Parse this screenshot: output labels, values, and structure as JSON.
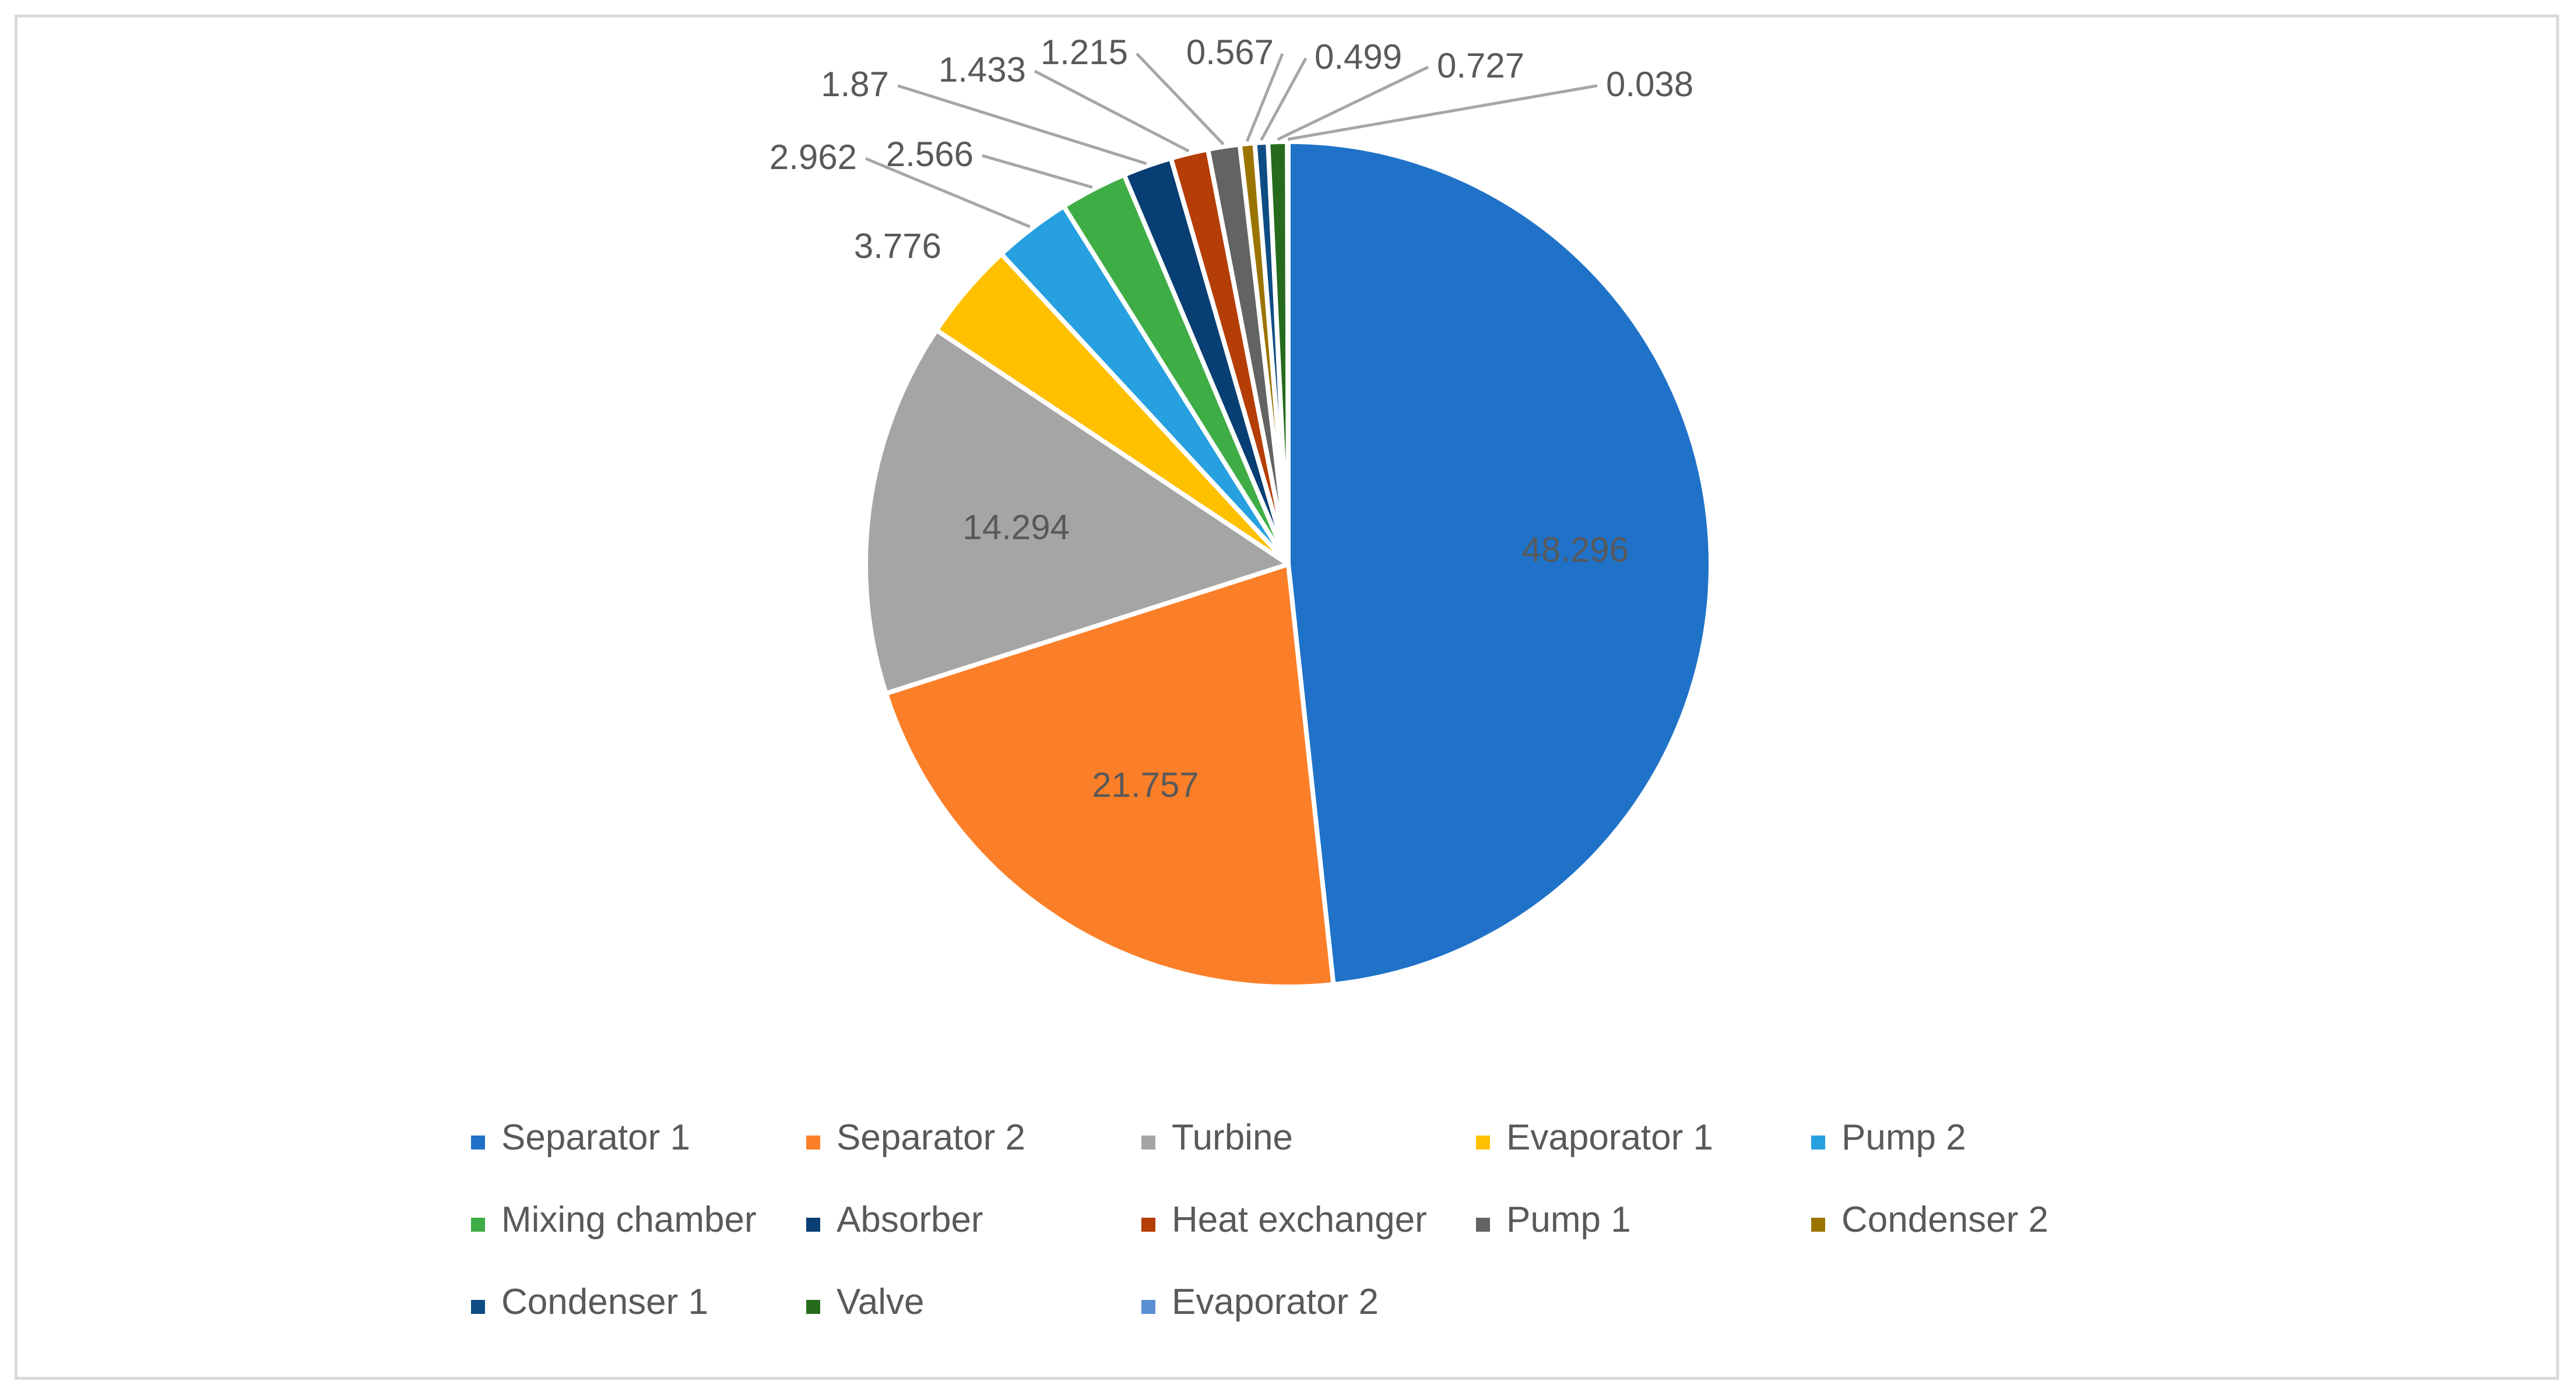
{
  "chart_data": {
    "type": "pie",
    "title": "",
    "categories": [
      "Separator 1",
      "Separator 2",
      "Turbine",
      "Evaporator 1",
      "Pump 2",
      "Mixing chamber",
      "Absorber",
      "Heat exchanger",
      "Pump 1",
      "Condenser 2",
      "Condenser 1",
      "Valve",
      "Evaporator 2"
    ],
    "values": [
      48.296,
      21.757,
      14.294,
      3.776,
      2.962,
      2.566,
      1.87,
      1.433,
      1.215,
      0.567,
      0.499,
      0.727,
      0.038
    ],
    "labels": [
      "48.296",
      "21.757",
      "14.294",
      "3.776",
      "2.962",
      "2.566",
      "1.87",
      "1.433",
      "1.215",
      "0.567",
      "0.499",
      "0.727",
      "0.038"
    ],
    "colors": [
      "#1f72c8",
      "#fb7f28",
      "#a5a5a5",
      "#ffc000",
      "#26a0de",
      "#3fad46",
      "#073e73",
      "#b53d06",
      "#636363",
      "#9b7400",
      "#0e4c84",
      "#266b1d",
      "#5b8fd4"
    ],
    "legend_position": "bottom"
  }
}
